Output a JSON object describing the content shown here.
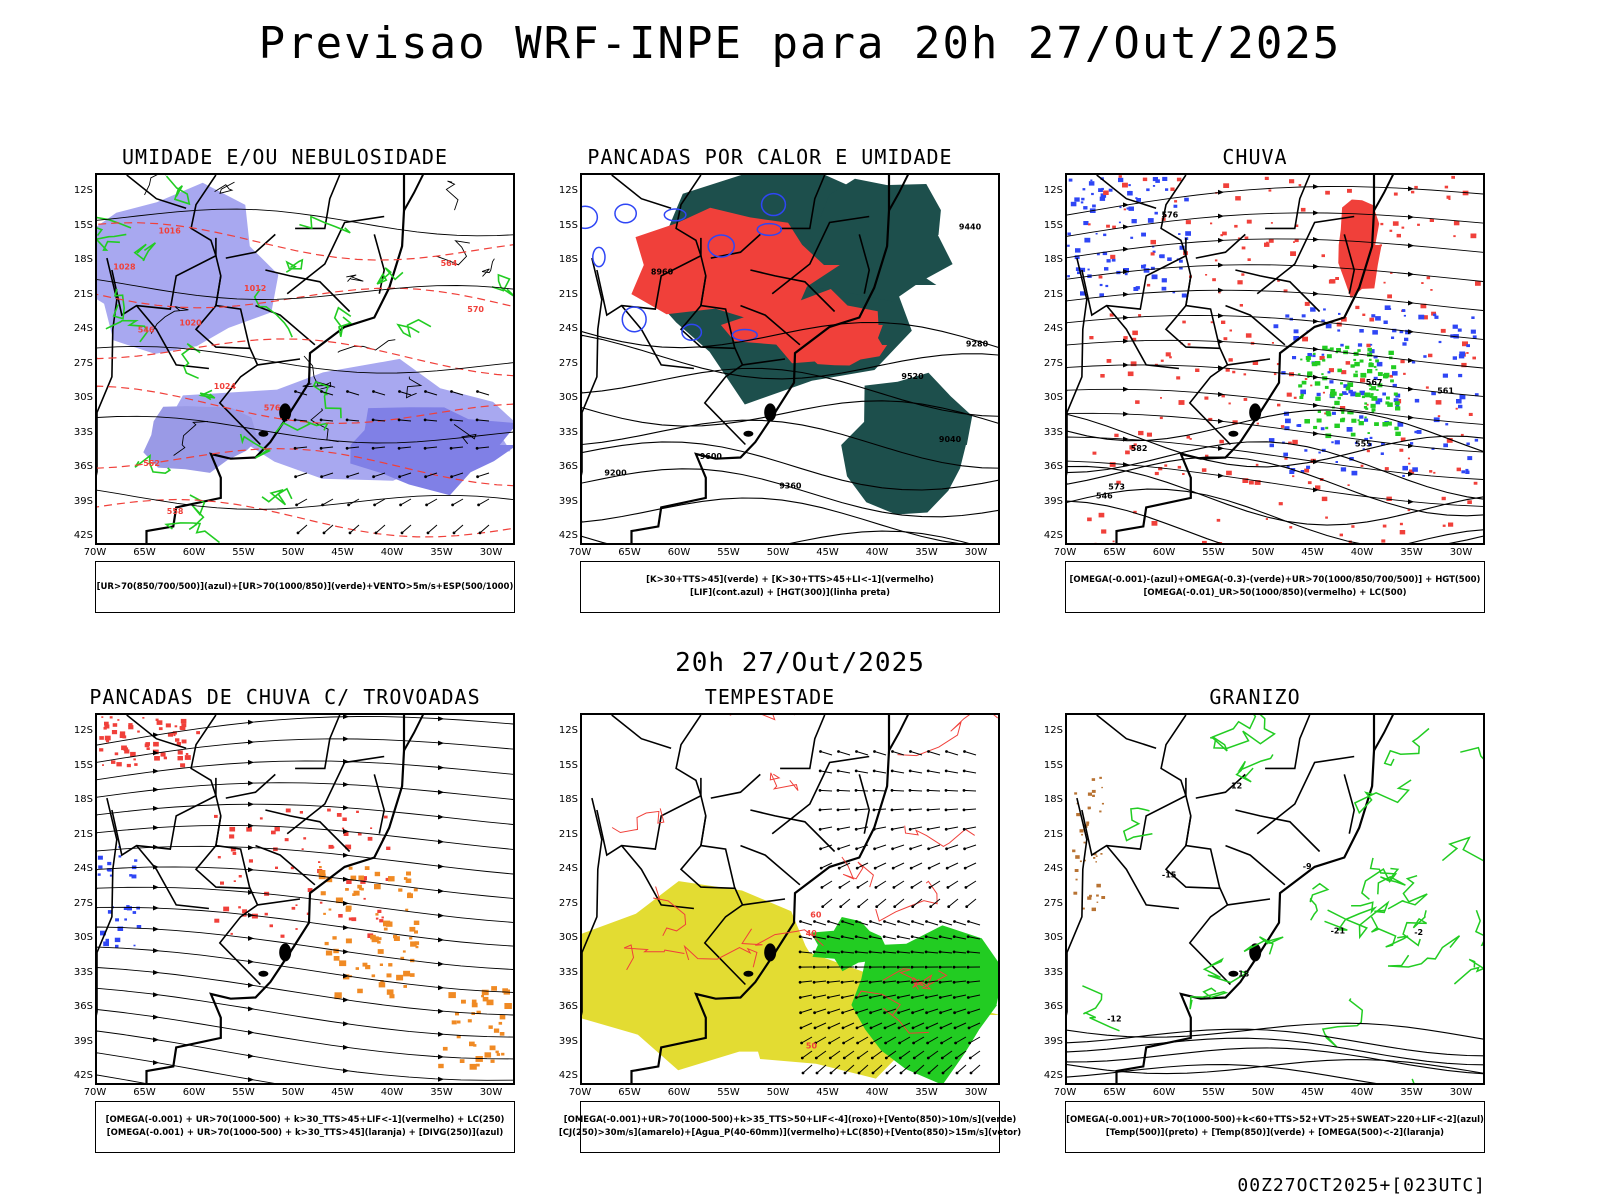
{
  "header": {
    "title": "Previsao WRF-INPE  para 20h 27/Out/2025"
  },
  "mid_date": "20h 27/Out/2025",
  "footer": {
    "stamp": "00Z27OCT2025+[023UTC]"
  },
  "axes": {
    "lat_labels": [
      "12S",
      "15S",
      "18S",
      "21S",
      "24S",
      "27S",
      "30S",
      "33S",
      "36S",
      "39S",
      "42S"
    ],
    "lon_labels": [
      "70W",
      "65W",
      "60W",
      "55W",
      "50W",
      "45W",
      "40W",
      "35W",
      "30W"
    ]
  },
  "colors": {
    "blue": "#2f46f5",
    "lavender": "#a8a8f0",
    "green": "#22cc22",
    "red": "#f0403a",
    "teal": "#1d4f4c",
    "orange": "#f08a24",
    "yellow": "#e3dc32",
    "brown": "#b87333"
  },
  "panels": [
    {
      "title": "UMIDADE E/OU NEBULOSIDADE",
      "legend": [
        "[UR>70(850/700/500)](azul)+[UR>70(1000/850)](verde)+VENTO>5m/s+ESP(500/1000)"
      ],
      "contour_labels": [
        "1012",
        "1016",
        "1020",
        "1024",
        "1028",
        "570",
        "576",
        "564",
        "558",
        "552",
        "546"
      ]
    },
    {
      "title": "PANCADAS POR CALOR E UMIDADE",
      "legend": [
        "[K>30+TTS>45](verde)  +  [K>30+TTS>45+LI<-1](vermelho)",
        "[LIF](cont.azul)  +  [HGT(300)](linha preta)"
      ],
      "contour_labels": [
        "9600",
        "9520",
        "9440",
        "9360",
        "9280",
        "9200",
        "9040",
        "8960"
      ]
    },
    {
      "title": "CHUVA",
      "legend": [
        "[OMEGA(-0.001)-(azul)+OMEGA(-0.3)-(verde)+UR>70(1000/850/700/500)]  +  HGT(500)",
        "[OMEGA(-0.01)_UR>50(1000/850)(vermelho)  +  LC(500)"
      ],
      "contour_labels": [
        "582",
        "576",
        "573",
        "567",
        "561",
        "555",
        "546"
      ]
    },
    {
      "title": "PANCADAS DE CHUVA C/ TROVOADAS",
      "legend": [
        "[OMEGA(-0.001)  +  UR>70(1000-500)  +  k>30_TTS>45+LIF<-1](vermelho)  +  LC(250)",
        "[OMEGA(-0.001)  +  UR>70(1000-500)  +  k>30_TTS>45](laranja)  +  [DIVG(250)](azul)"
      ],
      "contour_labels": []
    },
    {
      "title": "TEMPESTADE",
      "legend": [
        "[OMEGA(-0.001)+UR>70(1000-500)+k>35_TTS>50+LIF<-4](roxo)+[Vento(850)>10m/s](verde)",
        "[CJ(250)>30m/s](amarelo)+[Agua_P(40-60mm)](vermelho)+LC(850)+[Vento(850)>15m/s](vetor)"
      ],
      "contour_labels": [
        "40",
        "50",
        "60"
      ]
    },
    {
      "title": "GRANIZO",
      "legend": [
        "[OMEGA(-0.001)+UR>70(1000-500)+k<60+TTS>52+VT>25+SWEAT>220+LIF<-2](azul)",
        "[Temp(500)](preto)  +  [Temp(850)](verde)  +  [OMEGA(500)<-2](laranja)"
      ],
      "contour_labels": [
        "-9",
        "-12",
        "-15",
        "-18",
        "-21",
        "12",
        "-2"
      ]
    }
  ]
}
